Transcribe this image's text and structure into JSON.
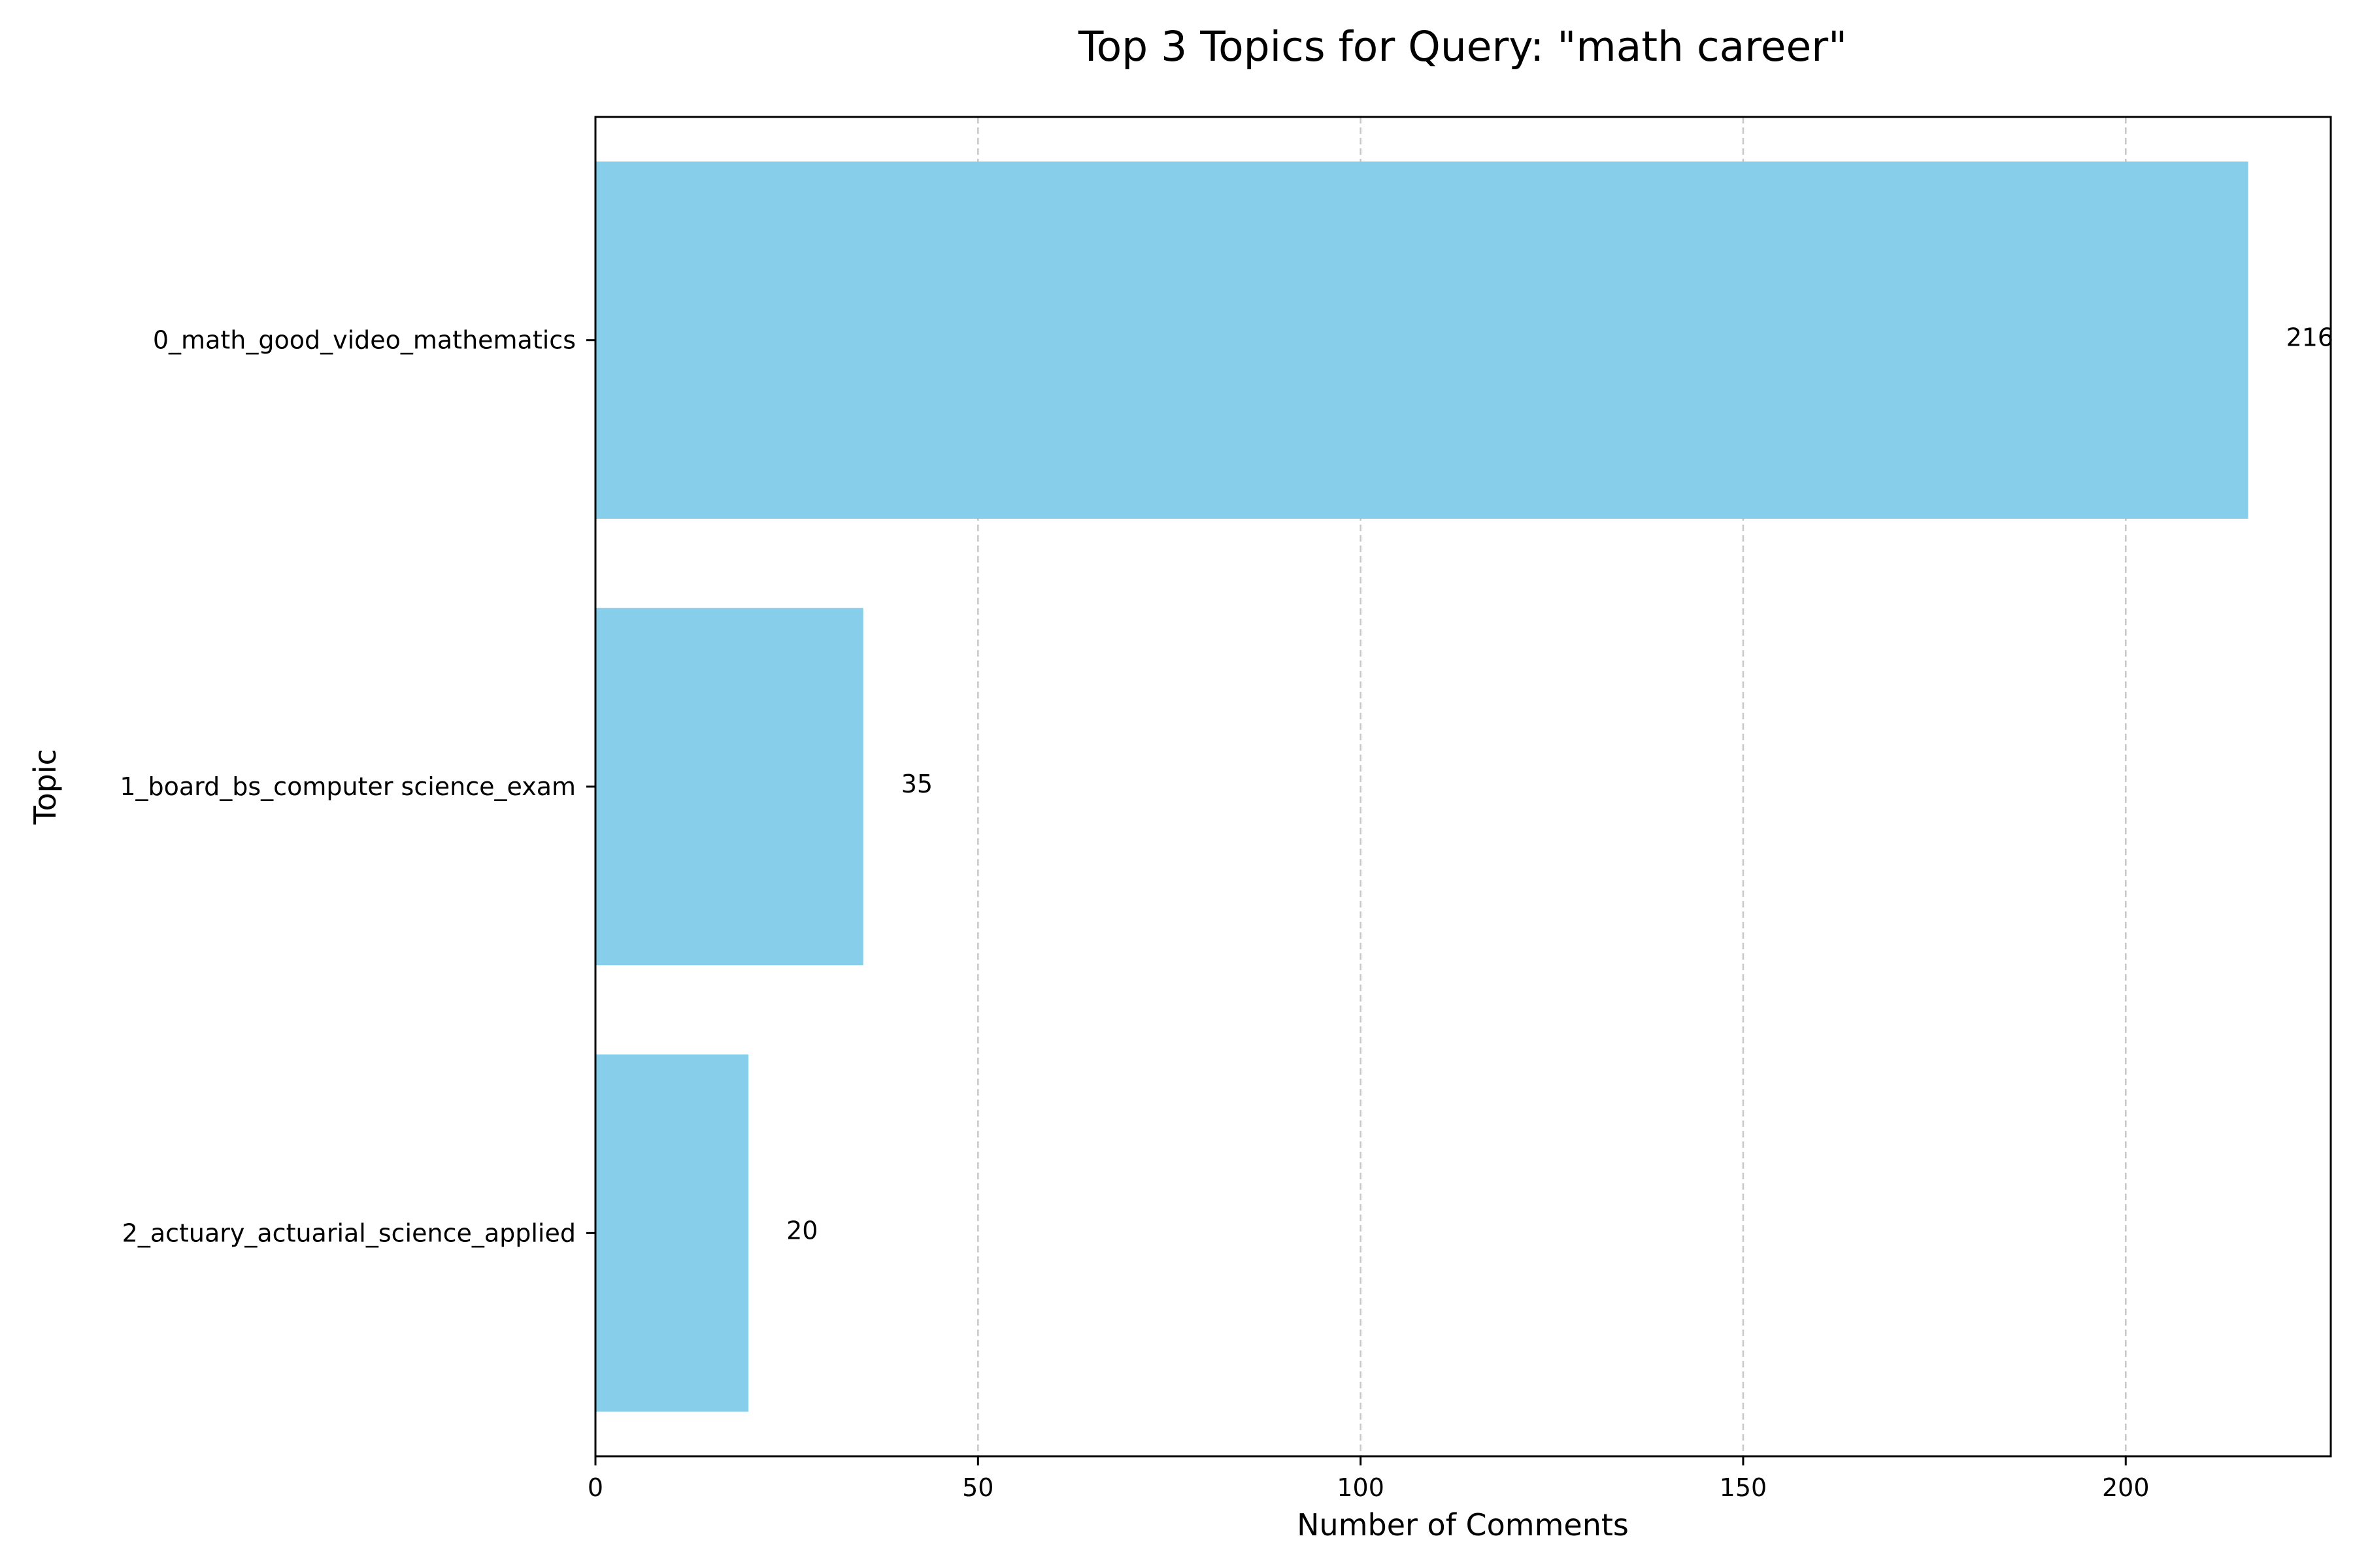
{
  "chart_data": {
    "type": "bar",
    "orientation": "horizontal",
    "title": "Top 3 Topics for Query: \"math career\"",
    "xlabel": "Number of Comments",
    "ylabel": "Topic",
    "categories": [
      "0_math_good_video_mathematics",
      "1_board_bs_computer science_exam",
      "2_actuary_actuarial_science_applied"
    ],
    "values": [
      216,
      35,
      20
    ],
    "data_labels": [
      "216",
      "35",
      "20"
    ],
    "xlim": [
      0,
      226.8
    ],
    "xticks": [
      0,
      50,
      100,
      150,
      200
    ],
    "xtick_labels": [
      "0",
      "50",
      "100",
      "150",
      "200"
    ],
    "grid": {
      "x": true,
      "y": false,
      "style": "dashed"
    },
    "colors": {
      "bar": "#87CEEB",
      "grid": "#c8c8c8",
      "axis": "#000000"
    }
  }
}
